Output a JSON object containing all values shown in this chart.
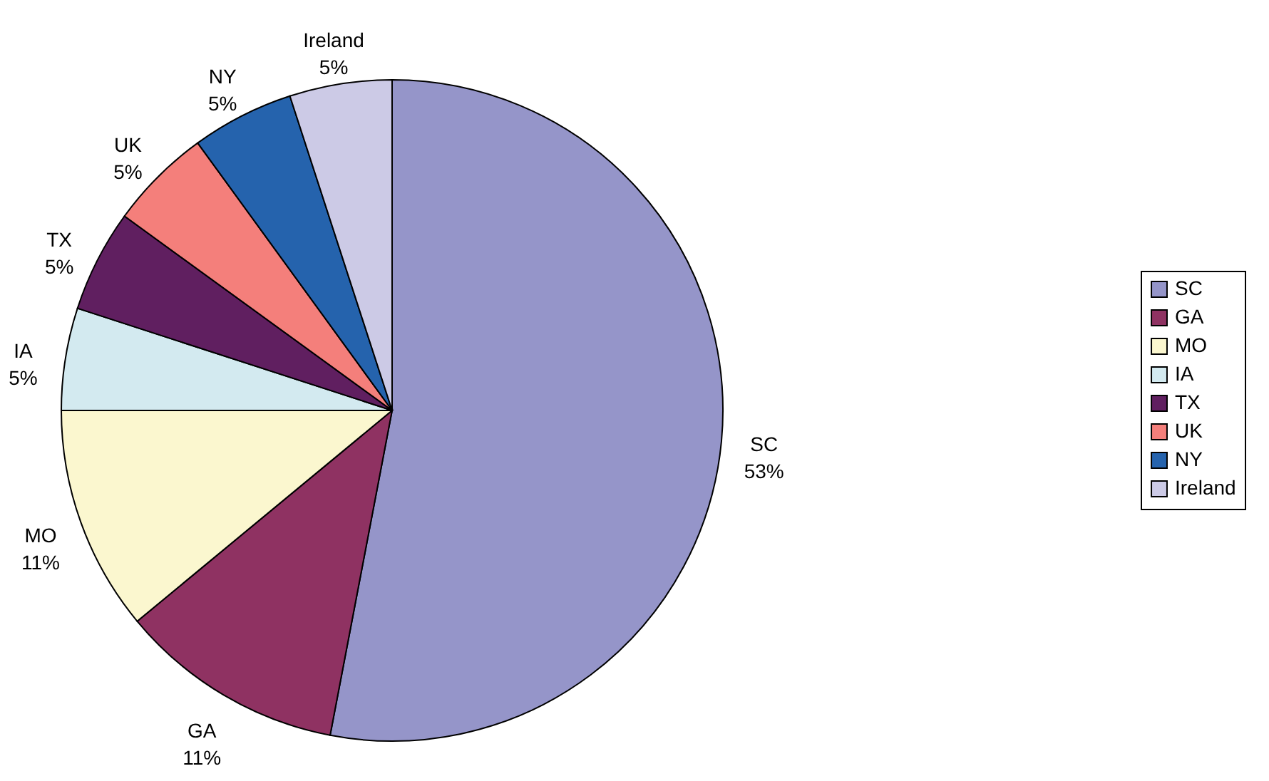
{
  "chart_data": {
    "type": "pie",
    "categories": [
      "SC",
      "GA",
      "MO",
      "IA",
      "TX",
      "UK",
      "NY",
      "Ireland"
    ],
    "values": [
      53,
      11,
      11,
      5,
      5,
      5,
      5,
      5
    ],
    "value_labels": [
      "53%",
      "11%",
      "11%",
      "5%",
      "5%",
      "5%",
      "5%",
      "5%"
    ],
    "colors": [
      "#9595c9",
      "#8f3262",
      "#fbf7cf",
      "#d3eaf0",
      "#601f60",
      "#f47f7b",
      "#2563ad",
      "#cccae6"
    ],
    "legend": "right"
  }
}
